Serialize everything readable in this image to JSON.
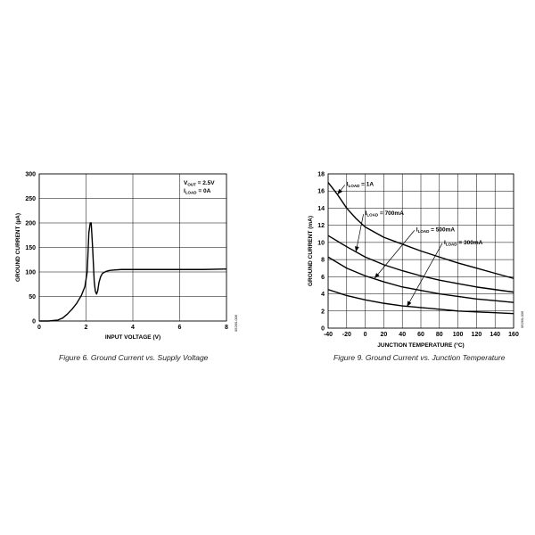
{
  "chart_data": [
    {
      "type": "line",
      "caption": "Figure 6. Ground Current vs. Supply Voltage",
      "xlabel": "INPUT VOLTAGE (V)",
      "ylabel": "GROUND CURRENT (µA)",
      "xlim": [
        0,
        8
      ],
      "ylim": [
        0,
        300
      ],
      "xticks": [
        0,
        2,
        4,
        6,
        8
      ],
      "yticks": [
        0,
        50,
        100,
        150,
        200,
        250,
        300
      ],
      "grid": true,
      "annotation": {
        "line1_main": "V",
        "line1_sub": "OUT",
        "line1_rest": " = 2.5V",
        "line2_main": "I",
        "line2_sub": "LOAD",
        "line2_rest": " = 0A"
      },
      "side_id": "05260-006",
      "series": [
        {
          "x": [
            0,
            0.4,
            0.8,
            1.0,
            1.2,
            1.4,
            1.6,
            1.8,
            1.95,
            2.05,
            2.12,
            2.18,
            2.22,
            2.28,
            2.35,
            2.4,
            2.45,
            2.5,
            2.55,
            2.62,
            2.7,
            2.85,
            3.0,
            3.2,
            3.5,
            4.0,
            5.0,
            6.0,
            7.0,
            8.0
          ],
          "y": [
            0,
            0,
            2,
            6,
            14,
            24,
            36,
            52,
            70,
            100,
            180,
            200,
            200,
            150,
            80,
            60,
            55,
            62,
            78,
            90,
            97,
            101,
            103,
            104,
            105,
            105,
            105,
            105,
            105,
            106
          ]
        }
      ]
    },
    {
      "type": "line",
      "caption": "Figure 9. Ground Current vs. Junction Temperature",
      "xlabel": "JUNCTION TEMPERATURE (°C)",
      "ylabel": "GROUND CURRENT (mA)",
      "xlim": [
        -40,
        160
      ],
      "ylim": [
        0,
        18
      ],
      "xticks": [
        -40,
        -20,
        0,
        20,
        40,
        60,
        80,
        100,
        120,
        140,
        160
      ],
      "yticks": [
        0,
        2,
        4,
        6,
        8,
        10,
        12,
        14,
        16,
        18
      ],
      "grid": true,
      "side_id": "05260-009",
      "series": [
        {
          "name_main": "I",
          "name_sub": "LOAD",
          "name_rest": " = 1A",
          "x": [
            -40,
            -30,
            -20,
            -10,
            0,
            20,
            40,
            60,
            80,
            100,
            120,
            140,
            160
          ],
          "y": [
            17,
            15.6,
            14.0,
            12.8,
            11.8,
            10.6,
            9.8,
            9.0,
            8.3,
            7.6,
            7.0,
            6.4,
            5.8
          ]
        },
        {
          "name_main": "I",
          "name_sub": "LOAD",
          "name_rest": " = 700mA",
          "x": [
            -40,
            -20,
            0,
            20,
            40,
            60,
            80,
            100,
            120,
            140,
            160
          ],
          "y": [
            10.8,
            9.5,
            8.3,
            7.4,
            6.7,
            6.1,
            5.6,
            5.2,
            4.8,
            4.5,
            4.2
          ]
        },
        {
          "name_main": "I",
          "name_sub": "LOAD",
          "name_rest": " = 500mA",
          "x": [
            -40,
            -20,
            0,
            20,
            40,
            60,
            80,
            100,
            120,
            140,
            160
          ],
          "y": [
            8.3,
            7.0,
            6.1,
            5.4,
            4.8,
            4.4,
            4.0,
            3.7,
            3.4,
            3.2,
            3.0
          ]
        },
        {
          "name_main": "I",
          "name_sub": "LOAD",
          "name_rest": " = 300mA",
          "x": [
            -40,
            -20,
            0,
            20,
            40,
            60,
            80,
            100,
            120,
            140,
            160
          ],
          "y": [
            4.5,
            3.8,
            3.3,
            2.9,
            2.6,
            2.4,
            2.2,
            2.0,
            1.9,
            1.8,
            1.7
          ]
        }
      ],
      "arrows": [
        {
          "series": 0,
          "label_at": [
            -20,
            16.6
          ],
          "tip_at": [
            -30,
            15.6
          ]
        },
        {
          "series": 1,
          "label_at": [
            0,
            13.2
          ],
          "tip_at": [
            -10,
            8.9
          ]
        },
        {
          "series": 2,
          "label_at": [
            55,
            11.3
          ],
          "tip_at": [
            10,
            5.8
          ]
        },
        {
          "series": 3,
          "label_at": [
            85,
            9.8
          ],
          "tip_at": [
            45,
            2.5
          ]
        }
      ]
    }
  ]
}
